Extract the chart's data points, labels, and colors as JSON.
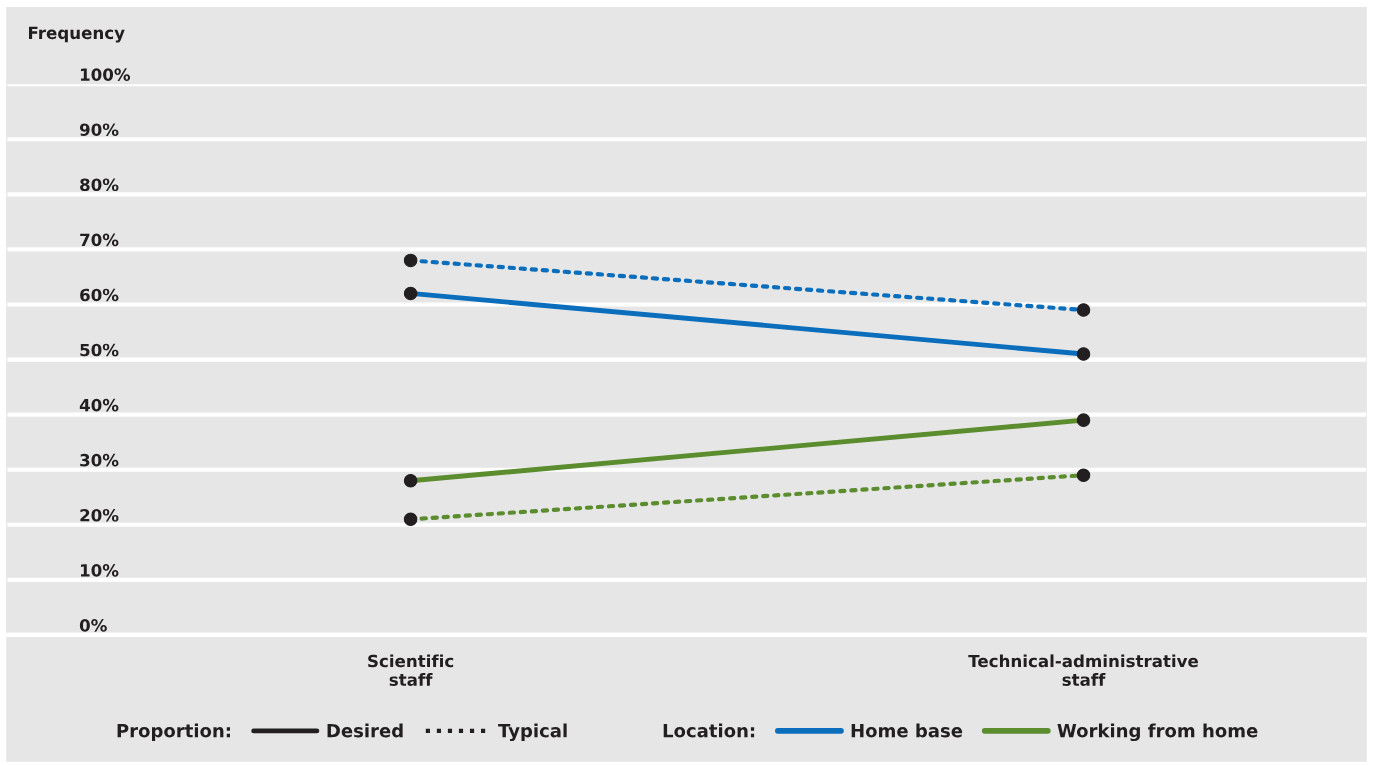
{
  "chart_data": {
    "type": "line",
    "ylabel": "Frequency",
    "categories": [
      "Scientific\nstaff",
      "Technical-administrative\nstaff"
    ],
    "series": [
      {
        "color": "#0a6ebd",
        "line_style": "solid",
        "values": [
          62,
          51
        ]
      },
      {
        "color": "#0a6ebd",
        "line_style": "dotted",
        "values": [
          68,
          59
        ]
      },
      {
        "color": "#5b8c2e",
        "line_style": "solid",
        "values": [
          28,
          39
        ]
      },
      {
        "color": "#5b8c2e",
        "line_style": "dotted",
        "values": [
          21,
          29
        ]
      }
    ],
    "ylim": [
      0,
      100
    ],
    "yticks": [
      {
        "value": 0,
        "label": "0%"
      },
      {
        "value": 10,
        "label": "10%"
      },
      {
        "value": 20,
        "label": "20%"
      },
      {
        "value": 30,
        "label": "30%"
      },
      {
        "value": 40,
        "label": "40%"
      },
      {
        "value": 50,
        "label": "50%"
      },
      {
        "value": 60,
        "label": "60%"
      },
      {
        "value": 70,
        "label": "70%"
      },
      {
        "value": 80,
        "label": "80%"
      },
      {
        "value": 90,
        "label": "90%"
      },
      {
        "value": 100,
        "label": "100%"
      }
    ],
    "grid": "y",
    "marker": "circle",
    "annotations": [
      "Proportion:",
      "Desired",
      "Typical",
      "Location:",
      "Home base",
      "Working from home"
    ]
  }
}
